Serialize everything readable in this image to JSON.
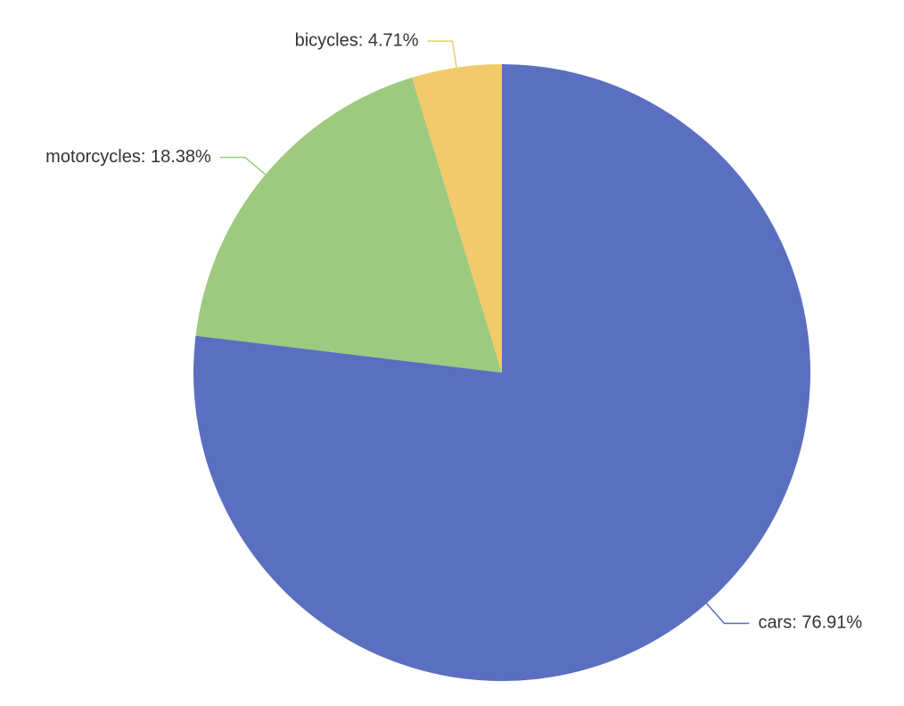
{
  "chart_data": {
    "type": "pie",
    "categories": [
      "cars",
      "motorcycles",
      "bicycles"
    ],
    "values": [
      76.91,
      18.38,
      4.71
    ],
    "value_labels": [
      "cars: 76.91%",
      "motorcycles: 18.38%",
      "bicycles: 4.71%"
    ],
    "colors": [
      "#5b6fc0",
      "#9dca7f",
      "#f2c96b"
    ]
  }
}
